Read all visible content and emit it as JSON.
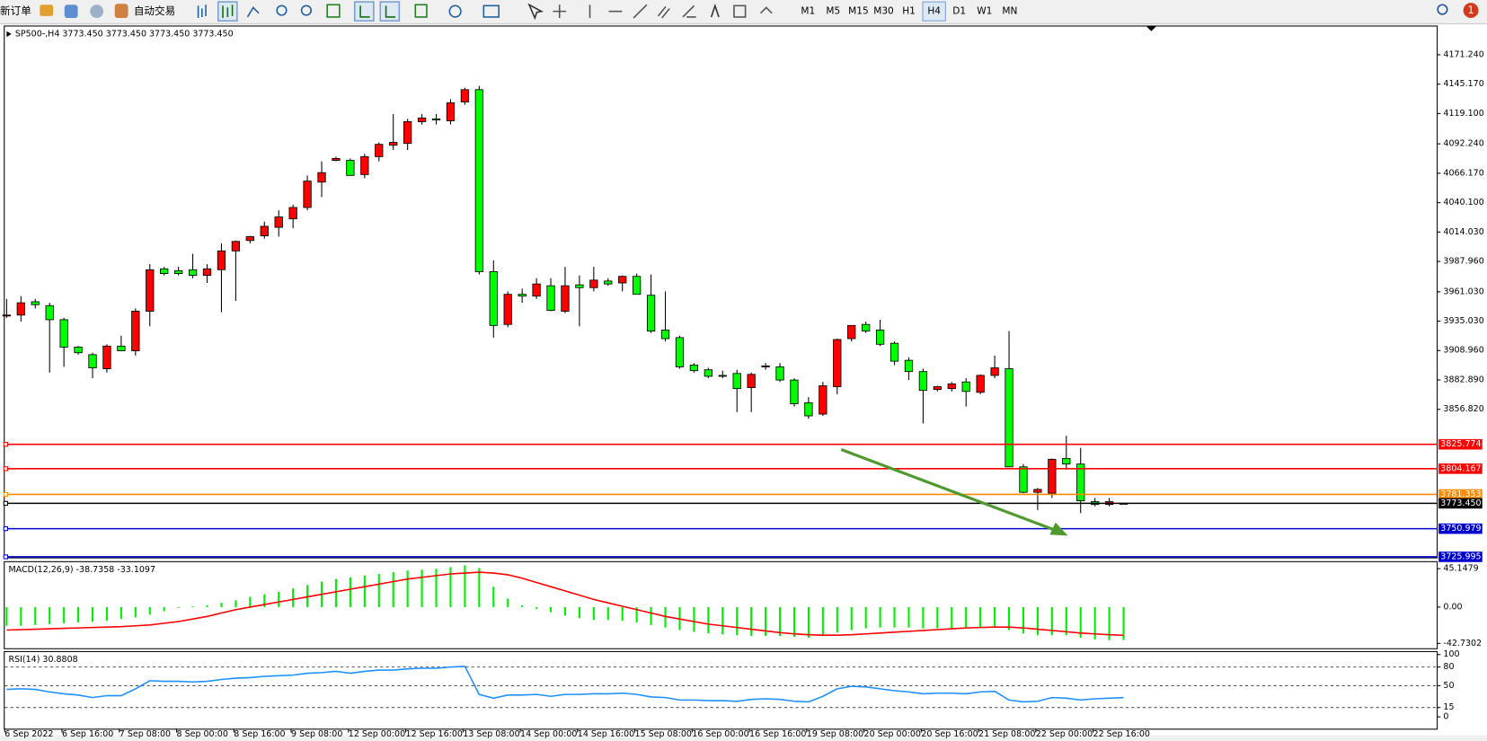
{
  "toolbar": {
    "new_order": "新订单",
    "auto_trading": "自动交易",
    "timeframes": [
      "M1",
      "M5",
      "M15",
      "M30",
      "H1",
      "H4",
      "D1",
      "W1",
      "MN"
    ],
    "active_timeframe": 5,
    "badge": "1"
  },
  "chart_data": [
    {
      "type": "candlestick",
      "title": "SP500-,H4  3773.450 3773.450 3773.450 3773.450",
      "categories": [
        "6 Sep 2022",
        null,
        null,
        null,
        "6 Sep 16:00",
        null,
        null,
        null,
        "7 Sep 08:00",
        null,
        null,
        null,
        "8 Sep 00:00",
        null,
        null,
        null,
        "8 Sep 16:00",
        null,
        null,
        null,
        "9 Sep 08:00",
        null,
        null,
        null,
        "12 Sep 00:00",
        null,
        null,
        null,
        "12 Sep 16:00",
        null,
        null,
        null,
        "13 Sep 08:00",
        null,
        null,
        null,
        "14 Sep 00:00",
        null,
        null,
        null,
        "14 Sep 16:00",
        null,
        null,
        null,
        "15 Sep 08:00",
        null,
        null,
        null,
        "16 Sep 00:00",
        null,
        null,
        null,
        "16 Sep 16:00",
        null,
        null,
        null,
        "19 Sep 08:00",
        null,
        null,
        null,
        "20 Sep 00:00",
        null,
        null,
        null,
        "20 Sep 16:00",
        null,
        null,
        null,
        "21 Sep 08:00",
        null,
        null,
        null,
        "22 Sep 00:00",
        null,
        null,
        null,
        "22 Sep 16:00",
        null,
        null
      ],
      "open": [
        3940.4,
        3940.4,
        3952.2,
        3948.8,
        3936.3,
        3912.0,
        3905.3,
        3892.8,
        3912.9,
        3908.7,
        3943.8,
        3981.4,
        3979.8,
        3980.6,
        3975.6,
        3980.6,
        3997.3,
        4006.5,
        4010.7,
        4018.2,
        4025.7,
        4035.8,
        4058.3,
        4077.6,
        4077.6,
        4065.0,
        4080.9,
        4091.0,
        4092.6,
        4111.9,
        4114.4,
        4112.7,
        4129.4,
        4140.3,
        3978.9,
        3932.1,
        3958.8,
        3957.2,
        3966.4,
        3943.8,
        3967.2,
        3964.7,
        3970.6,
        3968.9,
        3974.7,
        3958.0,
        3927.1,
        3920.4,
        3896.1,
        3891.9,
        3886.9,
        3888.6,
        3876.1,
        3895.3,
        3894.5,
        3882.8,
        3862.7,
        3852.6,
        3876.9,
        3919.5,
        3932.1,
        3927.1,
        3915.4,
        3900.3,
        3890.3,
        3874.4,
        3875.2,
        3881.1,
        3871.9,
        3886.9,
        3892.8,
        3805.8,
        3783.2,
        3782.4,
        3813.3,
        3808.3,
        3774.9,
        3772.4,
        3773.45
      ],
      "high": [
        3954.7,
        3957.2,
        3954.7,
        3951.3,
        3937.9,
        3913.0,
        3907.0,
        3914.5,
        3922.1,
        3946.3,
        3985.6,
        3983.1,
        3983.1,
        3994.8,
        3985.6,
        4004.0,
        4006.5,
        4010.7,
        4023.2,
        4033.3,
        4038.3,
        4064.2,
        4076.7,
        4080.9,
        4079.3,
        4083.4,
        4093.5,
        4118.6,
        4114.4,
        4118.6,
        4118.6,
        4131.9,
        4141.9,
        4143.6,
        3988.9,
        3961.4,
        3963.9,
        3973.1,
        3973.1,
        3983.1,
        3975.6,
        3983.1,
        3973.1,
        3975.6,
        3977.2,
        3976.4,
        3961.4,
        3922.1,
        3897.8,
        3893.6,
        3891.1,
        3891.9,
        3889.4,
        3897.8,
        3897.8,
        3884.4,
        3867.7,
        3881.1,
        3919.5,
        3931.2,
        3934.6,
        3936.3,
        3917.0,
        3903.0,
        3892.8,
        3877.7,
        3881.1,
        3884.4,
        3887.8,
        3904.5,
        3926.2,
        3808.3,
        3787.0,
        3813.3,
        3833.4,
        3822.6,
        3778.2,
        3778.2,
        3773.45
      ],
      "low": [
        3937.9,
        3934.6,
        3946.3,
        3889.4,
        3894.5,
        3905.3,
        3884.4,
        3889.4,
        3909.5,
        3904.5,
        3930.4,
        3975.6,
        3975.6,
        3973.1,
        3968.9,
        3943.0,
        3953.0,
        4004.0,
        4008.2,
        4009.9,
        4017.4,
        4033.3,
        4045.0,
        4076.7,
        4064.2,
        4061.7,
        4076.7,
        4086.8,
        4086.8,
        4109.4,
        4109.4,
        4109.4,
        4126.9,
        3976.4,
        3920.4,
        3929.6,
        3951.3,
        3954.7,
        3943.8,
        3942.1,
        3930.4,
        3961.4,
        3966.4,
        3961.4,
        3958.8,
        3924.6,
        3917.0,
        3892.8,
        3889.4,
        3884.4,
        3884.4,
        3854.3,
        3854.3,
        3891.9,
        3881.1,
        3859.3,
        3848.5,
        3851.0,
        3870.2,
        3917.0,
        3924.6,
        3912.9,
        3896.1,
        3882.8,
        3844.3,
        3872.7,
        3872.7,
        3859.3,
        3870.2,
        3884.4,
        3805.8,
        3782.4,
        3767.4,
        3778.2,
        3803.3,
        3764.8,
        3770.7,
        3770.7,
        3773.45
      ],
      "close": [
        3940.4,
        3951.3,
        3949.6,
        3936.3,
        3912.0,
        3907.0,
        3893.6,
        3912.9,
        3908.7,
        3943.8,
        3980.6,
        3977.2,
        3977.2,
        3975.6,
        3981.4,
        3997.3,
        4005.7,
        4009.9,
        4019.1,
        4027.4,
        4035.8,
        4059.2,
        4066.7,
        4079.3,
        4064.2,
        4080.9,
        4091.8,
        4093.5,
        4111.9,
        4115.2,
        4113.5,
        4128.6,
        4140.3,
        3978.9,
        3931.2,
        3958.8,
        3957.2,
        3968.0,
        3944.6,
        3966.4,
        3964.7,
        3971.4,
        3968.0,
        3974.7,
        3958.8,
        3926.2,
        3919.5,
        3894.5,
        3891.1,
        3886.1,
        3886.1,
        3875.2,
        3887.8,
        3895.3,
        3882.8,
        3861.8,
        3851.0,
        3877.7,
        3918.7,
        3931.2,
        3926.2,
        3914.5,
        3899.5,
        3890.3,
        3873.6,
        3876.9,
        3879.4,
        3872.7,
        3886.9,
        3893.6,
        3805.8,
        3783.2,
        3785.8,
        3812.5,
        3808.3,
        3775.7,
        3772.4,
        3774.9,
        3773.45
      ],
      "up_color": "#ff0000",
      "down_color": "#00ff00",
      "ylim": [
        3725.5,
        4196.3
      ],
      "yticks": [
        {
          "value": 4171.24,
          "label": "4171.240"
        },
        {
          "value": 4145.17,
          "label": "4145.170"
        },
        {
          "value": 4119.1,
          "label": "4119.100"
        },
        {
          "value": 4092.24,
          "label": "4092.240"
        },
        {
          "value": 4066.17,
          "label": "4066.170"
        },
        {
          "value": 4040.1,
          "label": "4040.100"
        },
        {
          "value": 4014.03,
          "label": "4014.030"
        },
        {
          "value": 3987.96,
          "label": "3987.960"
        },
        {
          "value": 3961.03,
          "label": "3961.030"
        },
        {
          "value": 3935.03,
          "label": "3935.030"
        },
        {
          "value": 3908.96,
          "label": "3908.960"
        },
        {
          "value": 3882.89,
          "label": "3882.890"
        },
        {
          "value": 3856.82,
          "label": "3856.820"
        }
      ],
      "hlines": [
        {
          "value": 3825.774,
          "color": "#ff0000"
        },
        {
          "value": 3804.167,
          "color": "#ff0000"
        },
        {
          "value": 3781.353,
          "color": "#ff8c00"
        },
        {
          "value": 3773.45,
          "label": "3773.450",
          "color": "#000000"
        },
        {
          "value": 3750.979,
          "color": "#0000cd"
        },
        {
          "value": 3725.995,
          "color": "#0000cd"
        }
      ]
    },
    {
      "type": "macd",
      "title": "MACD(12,26,9) -38.7358 -33.1097",
      "series": [
        {
          "style": "histogram",
          "color": "#00ee00",
          "values": [
            -22,
            -22,
            -21,
            -20,
            -19,
            -18,
            -17,
            -16,
            -14,
            -12,
            -9,
            -5,
            -1,
            1,
            2,
            5,
            8,
            12,
            15,
            18,
            22,
            26,
            30,
            33,
            35,
            37,
            39,
            41,
            43,
            44,
            45,
            47,
            49,
            46,
            24,
            10,
            2,
            -2,
            -6,
            -10,
            -13,
            -15,
            -15,
            -16,
            -18,
            -21,
            -24,
            -27,
            -29,
            -31,
            -32,
            -33,
            -34,
            -34,
            -34,
            -35,
            -36,
            -34,
            -30,
            -27,
            -25,
            -24,
            -24,
            -24,
            -25,
            -25,
            -25,
            -25,
            -24,
            -23,
            -27,
            -31,
            -33,
            -33,
            -33,
            -36,
            -38,
            -39,
            -38.7358
          ]
        },
        {
          "style": "line",
          "color": "#ff0000",
          "values": [
            -27,
            -26.5,
            -26,
            -25.5,
            -25,
            -24.5,
            -24,
            -23.5,
            -23,
            -22,
            -21,
            -19,
            -17,
            -14,
            -11,
            -7,
            -3,
            0,
            3,
            6,
            9,
            12,
            15,
            18,
            21,
            24,
            27,
            30,
            33,
            35,
            37,
            39,
            40,
            41,
            40,
            38,
            34,
            29,
            24,
            19,
            14,
            9,
            5,
            1,
            -3,
            -7,
            -11,
            -14,
            -17,
            -20,
            -22,
            -24,
            -26,
            -28,
            -30,
            -31.5,
            -32.5,
            -33,
            -33,
            -32.5,
            -31.5,
            -30.5,
            -29.5,
            -28.5,
            -27.5,
            -26.5,
            -25.5,
            -24.5,
            -24,
            -23.5,
            -23.5,
            -24.5,
            -26,
            -27.5,
            -29,
            -30.5,
            -31.5,
            -32.5,
            -33.1097
          ]
        }
      ],
      "ylim": [
        -48.4,
        52.85
      ],
      "yticks": [
        45.1479,
        {
          "value": 0,
          "label": "0.00"
        },
        -42.7302
      ]
    },
    {
      "type": "line",
      "title": "RSI(14) 30.8808",
      "series": [
        {
          "color": "#1e90ff",
          "values": [
            44,
            45,
            44,
            40,
            37,
            35,
            31,
            34,
            34,
            45,
            58,
            57,
            57,
            56,
            57,
            60,
            62,
            63,
            65,
            66,
            67,
            70,
            71,
            73,
            70,
            73,
            75,
            75,
            77,
            78,
            78,
            80,
            81,
            36,
            30,
            35,
            35,
            36,
            33,
            36,
            36,
            37,
            37,
            38,
            36,
            32,
            31,
            27,
            27,
            26,
            26,
            25,
            28,
            29,
            28,
            25,
            24,
            33,
            45,
            49,
            48,
            45,
            42,
            40,
            37,
            38,
            38,
            37,
            40,
            41,
            27,
            24,
            25,
            31,
            30,
            27,
            29,
            30,
            30.8808
          ]
        }
      ],
      "ylim": [
        -19,
        104
      ],
      "yticks": [
        100,
        80,
        50,
        15,
        0
      ],
      "levels": [
        80,
        50,
        15
      ]
    }
  ]
}
